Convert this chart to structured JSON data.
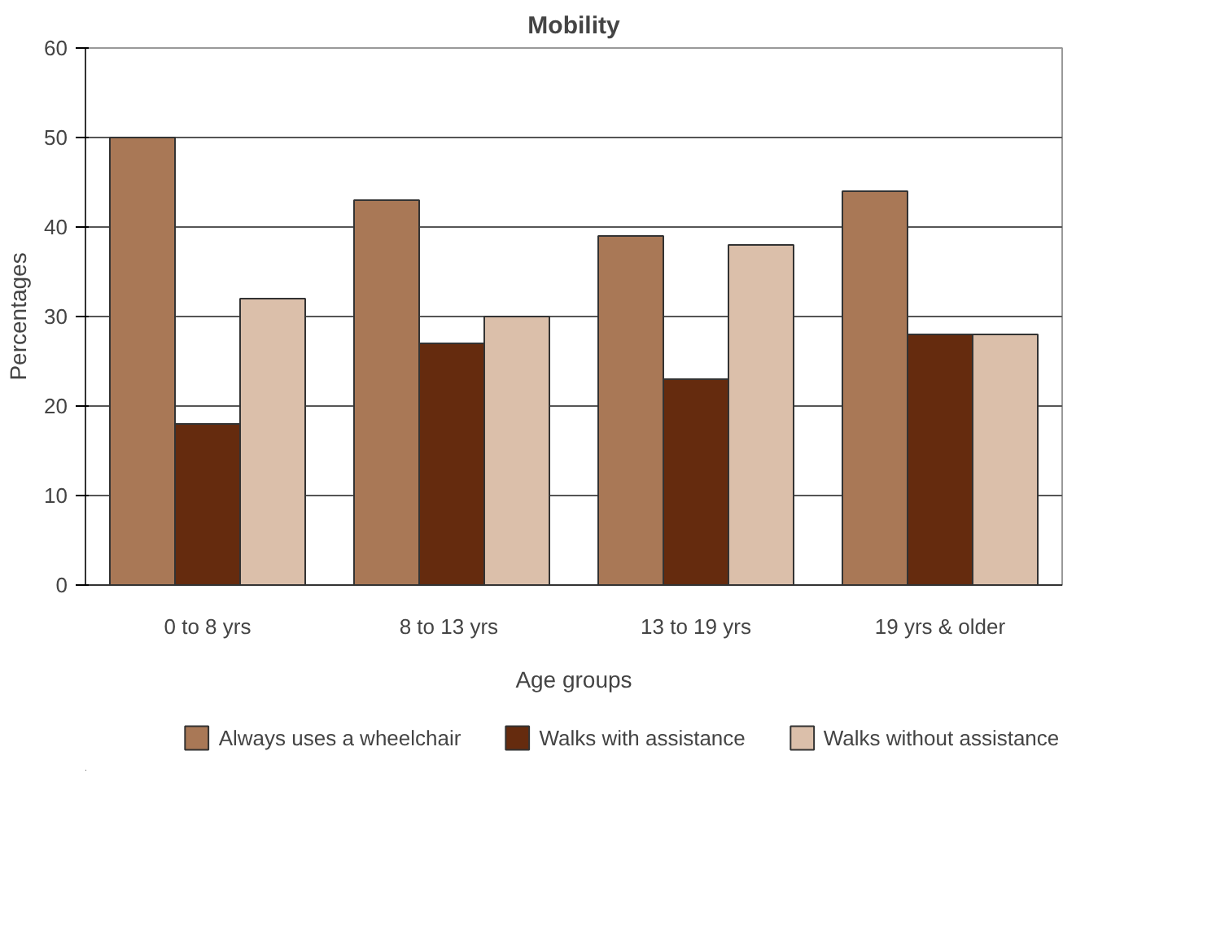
{
  "chart_data": {
    "type": "bar",
    "title": "Mobility",
    "xlabel": "Age groups",
    "ylabel": "Percentages",
    "categories": [
      "0 to 8 yrs",
      "8 to 13  yrs",
      "13 to 19 yrs",
      "19 yrs & older"
    ],
    "series": [
      {
        "name": "Always uses a wheelchair",
        "color": "#a97856",
        "values": [
          50,
          43,
          39,
          44
        ]
      },
      {
        "name": "Walks with assistance",
        "color": "#652b0e",
        "values": [
          18,
          27,
          23,
          28
        ]
      },
      {
        "name": "Walks without assistance",
        "color": "#dbbfaa",
        "values": [
          32,
          30,
          38,
          28
        ]
      }
    ],
    "ylim": [
      0,
      60
    ],
    "yticks": [
      0,
      10,
      20,
      30,
      40,
      50,
      60
    ],
    "grid": "y",
    "legend": "bottom"
  }
}
